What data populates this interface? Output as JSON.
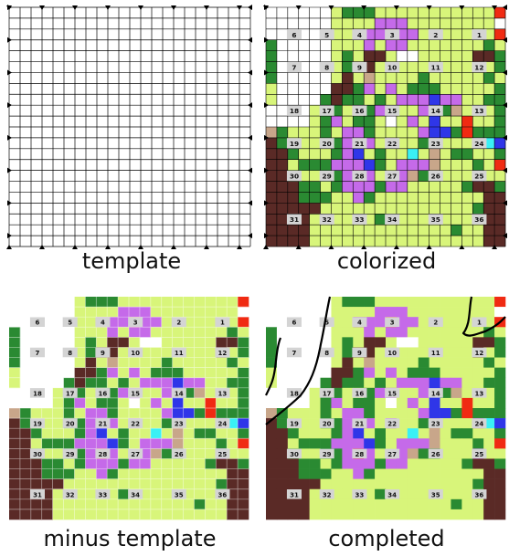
{
  "captions": {
    "template": "template",
    "colorized": "colorized",
    "minus_template": "minus template",
    "completed": "completed"
  },
  "grid": {
    "columns": 22,
    "rows": 22
  },
  "palette": {
    "L": "#d8f57a",
    "D": "#2a8a32",
    "B": "#5a2a26",
    "P": "#c56ae9",
    "U": "#2f36e8",
    "C": "#3af0f5",
    "O": "#f59a2c",
    "R": "#f02a12",
    "T": "#c8a68a",
    "W": "#ffffff",
    "grid_line": "#000000",
    "label_box": "#d4d4d4",
    "boundary_line": "#000000"
  },
  "cells": [
    "WWWWWWLDDDLLLLLLLLLLLR",
    "WWWWWWLLLLPPPLLLLLLLLW",
    "WWWWWWLLPPPOPPLLLLLLLR",
    "DWWWWWLLLPLPPLLLLLLLDL",
    "DWWWWWLDLBBLWWLLLLLBBD",
    "DWWWWWLDBBLLLLLLLLLBLD",
    "DWWWWWLBLTLLLLDLLLLLDL",
    "LWWWWWBBDPLPLDDDLLLLLD",
    "LWWWWDBDDLDLPPPUPPLLDD",
    "WWWWLDDLLDPPLLPUDTLLLD",
    "WWWWLDPLDDLWLPLULLRLLD",
    "TDLLLDLPPDLLLLPUUDRDDD",
    "BDLLLDDPPPLPLLDTLLLPCU",
    "BBDLLLDPULDLLCLTLDDLLD",
    "BBLDDDPPPUDLPPPTLLLDLR",
    "BBDLLDDPRPLLPTDDLLLPLL",
    "BBBDDLDPPPDPPLLLLLDBBD",
    "BBBDDDLLPDLLLLLLLLLLBB",
    "BBBBBLLLLLLLLLLLLLLDBB",
    "BBBBLLLLLLDLLLLLLLLLBB",
    "BBBBLLLLLLLLLLLLLDLLBB",
    "BBBBLLLLLLLLLLLLLLLLBB"
  ],
  "labels": [
    {
      "text": "6",
      "row": 2,
      "col": 2
    },
    {
      "text": "5",
      "row": 2,
      "col": 5
    },
    {
      "text": "4",
      "row": 2,
      "col": 8
    },
    {
      "text": "3",
      "row": 2,
      "col": 11
    },
    {
      "text": "2",
      "row": 2,
      "col": 15
    },
    {
      "text": "1",
      "row": 2,
      "col": 19
    },
    {
      "text": "7",
      "row": 5,
      "col": 2
    },
    {
      "text": "8",
      "row": 5,
      "col": 5
    },
    {
      "text": "9",
      "row": 5,
      "col": 8
    },
    {
      "text": "10",
      "row": 5,
      "col": 11
    },
    {
      "text": "11",
      "row": 5,
      "col": 15
    },
    {
      "text": "12",
      "row": 5,
      "col": 19
    },
    {
      "text": "18",
      "row": 9,
      "col": 2
    },
    {
      "text": "17",
      "row": 9,
      "col": 5
    },
    {
      "text": "16",
      "row": 9,
      "col": 8
    },
    {
      "text": "15",
      "row": 9,
      "col": 11
    },
    {
      "text": "14",
      "row": 9,
      "col": 15
    },
    {
      "text": "13",
      "row": 9,
      "col": 19
    },
    {
      "text": "19",
      "row": 12,
      "col": 2
    },
    {
      "text": "20",
      "row": 12,
      "col": 5
    },
    {
      "text": "21",
      "row": 12,
      "col": 8
    },
    {
      "text": "22",
      "row": 12,
      "col": 11
    },
    {
      "text": "23",
      "row": 12,
      "col": 15
    },
    {
      "text": "24",
      "row": 12,
      "col": 19
    },
    {
      "text": "30",
      "row": 15,
      "col": 2
    },
    {
      "text": "29",
      "row": 15,
      "col": 5
    },
    {
      "text": "28",
      "row": 15,
      "col": 8
    },
    {
      "text": "27",
      "row": 15,
      "col": 11
    },
    {
      "text": "26",
      "row": 15,
      "col": 15
    },
    {
      "text": "25",
      "row": 15,
      "col": 19
    },
    {
      "text": "31",
      "row": 19,
      "col": 2
    },
    {
      "text": "32",
      "row": 19,
      "col": 5
    },
    {
      "text": "33",
      "row": 19,
      "col": 8
    },
    {
      "text": "34",
      "row": 19,
      "col": 11
    },
    {
      "text": "35",
      "row": 19,
      "col": 15
    },
    {
      "text": "36",
      "row": 19,
      "col": 19
    }
  ]
}
